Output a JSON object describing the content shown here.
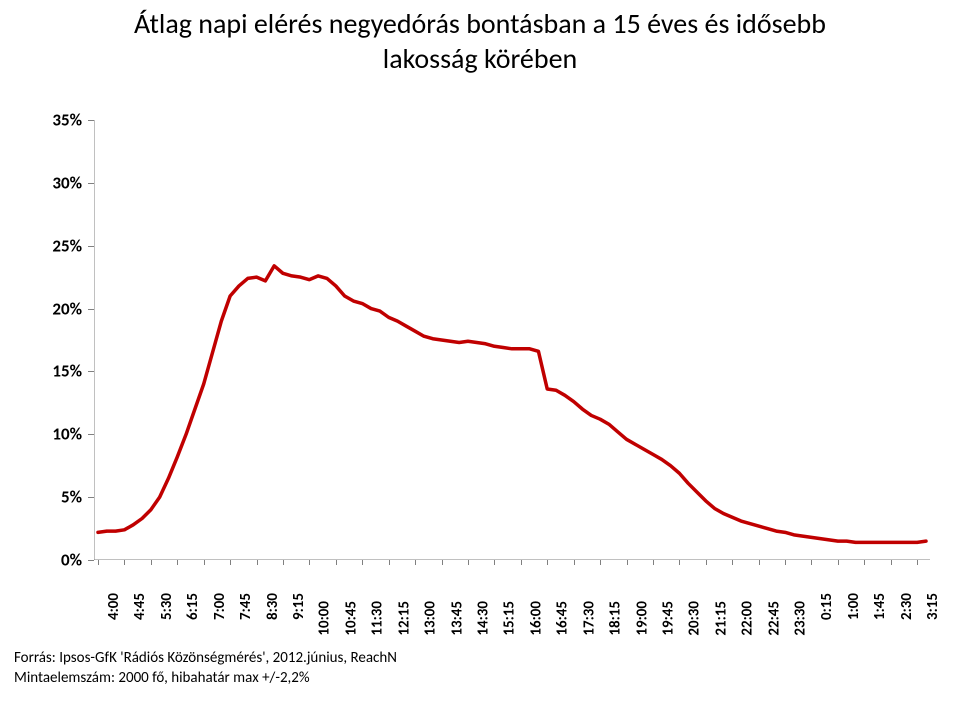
{
  "title_line1": "Átlag napi elérés negyedórás bontásban a 15 éves és idősebb",
  "title_line2": "lakosság körében",
  "footer_line1": "Forrás: Ipsos-GfK 'Rádiós Közönségmérés', 2012.június, ReachN",
  "footer_line2": "Mintaelemszám: 2000 fő, hibahatár max +/-2,2%",
  "chart": {
    "type": "line",
    "background_color": "#ffffff",
    "axis_color": "#808080",
    "line_color": "#c00000",
    "line_width": 3.5,
    "ylim": [
      0,
      35
    ],
    "ytick_step": 5,
    "y_labels": [
      "0%",
      "5%",
      "10%",
      "15%",
      "20%",
      "25%",
      "30%",
      "35%"
    ],
    "x_tick_labels": [
      "4:00",
      "4:45",
      "5:30",
      "6:15",
      "7:00",
      "7:45",
      "8:30",
      "9:15",
      "10:00",
      "10:45",
      "11:30",
      "12:15",
      "13:00",
      "13:45",
      "14:30",
      "15:15",
      "16:00",
      "16:45",
      "17:30",
      "18:15",
      "19:00",
      "19:45",
      "20:30",
      "21:15",
      "22:00",
      "22:45",
      "23:30",
      "0:15",
      "1:00",
      "1:45",
      "2:30",
      "3:15"
    ],
    "x_tick_every": 3,
    "values": [
      2.2,
      2.3,
      2.3,
      2.4,
      2.8,
      3.3,
      4.0,
      5.0,
      6.5,
      8.2,
      10.0,
      12.0,
      14.0,
      16.5,
      19.0,
      21.0,
      21.8,
      22.4,
      22.5,
      22.2,
      23.4,
      22.8,
      22.6,
      22.5,
      22.3,
      22.6,
      22.4,
      21.8,
      21.0,
      20.6,
      20.4,
      20.0,
      19.8,
      19.3,
      19.0,
      18.6,
      18.2,
      17.8,
      17.6,
      17.5,
      17.4,
      17.3,
      17.4,
      17.3,
      17.2,
      17.0,
      16.9,
      16.8,
      16.8,
      16.8,
      16.6,
      13.6,
      13.5,
      13.1,
      12.6,
      12.0,
      11.5,
      11.2,
      10.8,
      10.2,
      9.6,
      9.2,
      8.8,
      8.4,
      8.0,
      7.5,
      6.9,
      6.1,
      5.4,
      4.7,
      4.1,
      3.7,
      3.4,
      3.1,
      2.9,
      2.7,
      2.5,
      2.3,
      2.2,
      2.0,
      1.9,
      1.8,
      1.7,
      1.6,
      1.5,
      1.5,
      1.4,
      1.4,
      1.4,
      1.4,
      1.4,
      1.4,
      1.4,
      1.4,
      1.5
    ],
    "tick_fontsize": 17,
    "x_tick_fontsize": 15
  }
}
